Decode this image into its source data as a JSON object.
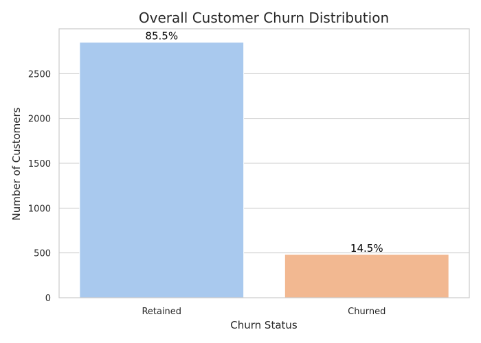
{
  "chart_data": {
    "type": "bar",
    "title": "Overall Customer Churn Distribution",
    "xlabel": "Churn Status",
    "ylabel": "Number of Customers",
    "categories": [
      "Retained",
      "Churned"
    ],
    "values": [
      2850,
      483
    ],
    "data_labels": [
      "85.5%",
      "14.5%"
    ],
    "colors": [
      "#a9c9ee",
      "#f2b891"
    ],
    "ylim": [
      0,
      3000
    ],
    "yticks": [
      0,
      500,
      1000,
      1500,
      2000,
      2500
    ],
    "grid": "horizontal",
    "legend": "none"
  }
}
